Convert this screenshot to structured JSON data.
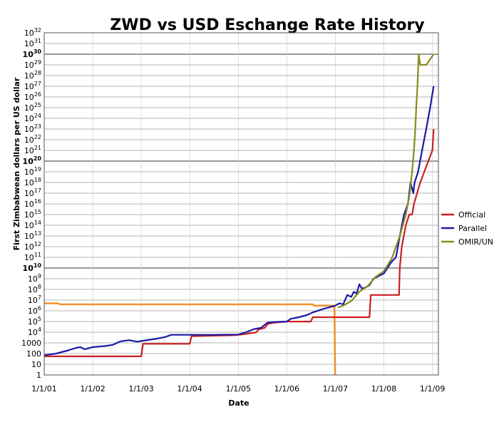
{
  "chart_data": {
    "type": "line",
    "title": "ZWD vs USD Eschange Rate History",
    "xlabel": "Date",
    "ylabel": "First Zimbabwean dollars per US dollar",
    "yscale": "log",
    "ylim": [
      1,
      1e+32
    ],
    "xlim": [
      "2001-01-01",
      "2009-02-15"
    ],
    "x_ticks": [
      "1/1/01",
      "1/1/02",
      "1/1/03",
      "1/1/04",
      "1/1/05",
      "1/1/06",
      "1/1/07",
      "1/1/08",
      "1/1/09"
    ],
    "y_ticks": [
      {
        "value": 1,
        "base": "1",
        "exp": ""
      },
      {
        "value": 10.0,
        "base": "10",
        "exp": ""
      },
      {
        "value": 100.0,
        "base": "100",
        "exp": ""
      },
      {
        "value": 1000.0,
        "base": "1000",
        "exp": ""
      },
      {
        "value": 10000.0,
        "base": "10",
        "exp": "4"
      },
      {
        "value": 100000.0,
        "base": "10",
        "exp": "5"
      },
      {
        "value": 1000000.0,
        "base": "10",
        "exp": "6"
      },
      {
        "value": 10000000.0,
        "base": "10",
        "exp": "7"
      },
      {
        "value": 100000000.0,
        "base": "10",
        "exp": "8"
      },
      {
        "value": 1000000000.0,
        "base": "10",
        "exp": "9"
      },
      {
        "value": 10000000000.0,
        "base": "10",
        "exp": "10",
        "bold": true
      },
      {
        "value": 100000000000.0,
        "base": "10",
        "exp": "11"
      },
      {
        "value": 1000000000000.0,
        "base": "10",
        "exp": "12"
      },
      {
        "value": 10000000000000.0,
        "base": "10",
        "exp": "13"
      },
      {
        "value": 100000000000000.0,
        "base": "10",
        "exp": "14"
      },
      {
        "value": 1000000000000000.0,
        "base": "10",
        "exp": "15"
      },
      {
        "value": 1e+16,
        "base": "10",
        "exp": "16"
      },
      {
        "value": 1e+17,
        "base": "10",
        "exp": "17"
      },
      {
        "value": 1e+18,
        "base": "10",
        "exp": "18"
      },
      {
        "value": 1e+19,
        "base": "10",
        "exp": "19"
      },
      {
        "value": 1e+20,
        "base": "10",
        "exp": "20",
        "bold": true
      },
      {
        "value": 1e+21,
        "base": "10",
        "exp": "21"
      },
      {
        "value": 1e+22,
        "base": "10",
        "exp": "22"
      },
      {
        "value": 1e+23,
        "base": "10",
        "exp": "23"
      },
      {
        "value": 1e+24,
        "base": "10",
        "exp": "24"
      },
      {
        "value": 1e+25,
        "base": "10",
        "exp": "25"
      },
      {
        "value": 1e+26,
        "base": "10",
        "exp": "26"
      },
      {
        "value": 1e+27,
        "base": "10",
        "exp": "27"
      },
      {
        "value": 1e+28,
        "base": "10",
        "exp": "28"
      },
      {
        "value": 1e+29,
        "base": "10",
        "exp": "29"
      },
      {
        "value": 1e+30,
        "base": "10",
        "exp": "30",
        "bold": true
      },
      {
        "value": 1e+31,
        "base": "10",
        "exp": "31"
      },
      {
        "value": 1e+32,
        "base": "10",
        "exp": "32"
      }
    ],
    "grid": true,
    "legend_position": "right",
    "series": [
      {
        "name": "Official",
        "color": "#cc1f1f",
        "points": [
          [
            "2001-01-01",
            55
          ],
          [
            "2003-01-01",
            55
          ],
          [
            "2003-01-15",
            824
          ],
          [
            "2004-01-01",
            824
          ],
          [
            "2004-01-15",
            4196
          ],
          [
            "2004-12-01",
            5200
          ],
          [
            "2005-02-01",
            6200
          ],
          [
            "2005-05-15",
            9500
          ],
          [
            "2005-06-01",
            17600
          ],
          [
            "2005-07-20",
            26000
          ],
          [
            "2005-08-10",
            60000
          ],
          [
            "2005-10-01",
            80000
          ],
          [
            "2006-01-01",
            99000
          ],
          [
            "2006-07-01",
            99000
          ],
          [
            "2006-07-15",
            250000
          ],
          [
            "2007-09-15",
            250000
          ],
          [
            "2007-09-25",
            30000000
          ],
          [
            "2008-03-01",
            30000000
          ],
          [
            "2008-04-25",
            30000000
          ],
          [
            "2008-04-30",
            10000000000.0
          ],
          [
            "2008-05-15",
            1000000000000.0
          ],
          [
            "2008-06-15",
            100000000000000.0
          ],
          [
            "2008-07-10",
            1000000000000000.0
          ],
          [
            "2008-08-01",
            1000000000000000.0
          ],
          [
            "2008-08-15",
            1e+16
          ],
          [
            "2008-10-01",
            1e+18
          ],
          [
            "2008-11-01",
            1e+19
          ],
          [
            "2008-12-01",
            1e+20
          ],
          [
            "2009-01-01",
            1e+21
          ],
          [
            "2009-01-10",
            1e+23
          ]
        ]
      },
      {
        "name": "Parallel",
        "color": "#1a1aa6",
        "points": [
          [
            "2001-01-01",
            70
          ],
          [
            "2001-04-01",
            100
          ],
          [
            "2001-07-01",
            200
          ],
          [
            "2001-09-01",
            350
          ],
          [
            "2001-10-01",
            400
          ],
          [
            "2001-11-01",
            250
          ],
          [
            "2002-01-01",
            400
          ],
          [
            "2002-04-01",
            500
          ],
          [
            "2002-06-01",
            650
          ],
          [
            "2002-08-01",
            1400
          ],
          [
            "2002-10-01",
            1800
          ],
          [
            "2002-12-01",
            1300
          ],
          [
            "2003-02-01",
            1700
          ],
          [
            "2003-05-01",
            2500
          ],
          [
            "2003-07-01",
            3500
          ],
          [
            "2003-08-15",
            5700
          ],
          [
            "2004-01-01",
            5700
          ],
          [
            "2004-07-01",
            5700
          ],
          [
            "2005-01-01",
            6000
          ],
          [
            "2005-03-01",
            10000
          ],
          [
            "2005-05-01",
            20000
          ],
          [
            "2005-06-20",
            25000
          ],
          [
            "2005-07-10",
            40000
          ],
          [
            "2005-08-10",
            80000
          ],
          [
            "2005-10-01",
            90000
          ],
          [
            "2006-01-01",
            100000
          ],
          [
            "2006-02-01",
            180000
          ],
          [
            "2006-04-01",
            250000
          ],
          [
            "2006-06-01",
            400000
          ],
          [
            "2006-07-15",
            700000
          ],
          [
            "2006-10-01",
            1500000
          ],
          [
            "2007-01-01",
            3000000
          ],
          [
            "2007-02-01",
            5000000
          ],
          [
            "2007-03-01",
            4000000
          ],
          [
            "2007-04-01",
            30000000
          ],
          [
            "2007-05-01",
            20000000
          ],
          [
            "2007-05-20",
            60000000
          ],
          [
            "2007-06-10",
            40000000
          ],
          [
            "2007-07-01",
            300000000
          ],
          [
            "2007-07-20",
            120000000
          ],
          [
            "2007-08-15",
            150000000
          ],
          [
            "2007-09-15",
            250000000
          ],
          [
            "2007-10-15",
            1000000000
          ],
          [
            "2007-12-01",
            2000000000
          ],
          [
            "2008-01-01",
            3000000000
          ],
          [
            "2008-02-01",
            12000000000
          ],
          [
            "2008-03-01",
            40000000000
          ],
          [
            "2008-04-01",
            100000000000
          ],
          [
            "2008-05-01",
            10000000000000.0
          ],
          [
            "2008-06-01",
            1000000000000000.0
          ],
          [
            "2008-07-01",
            1e+16
          ],
          [
            "2008-07-20",
            1e+18
          ],
          [
            "2008-08-10",
            1e+17
          ],
          [
            "2008-08-20",
            1e+18
          ],
          [
            "2008-09-15",
            1e+19
          ],
          [
            "2008-10-15",
            1e+21
          ],
          [
            "2008-11-15",
            1e+23
          ],
          [
            "2008-12-15",
            1e+25
          ],
          [
            "2009-01-10",
            1e+27
          ]
        ]
      },
      {
        "name": "OMIR/UN",
        "color": "#8b8b1e",
        "points": [
          [
            "2007-01-20",
            2000000
          ],
          [
            "2007-03-01",
            3000000
          ],
          [
            "2007-05-01",
            8000000
          ],
          [
            "2007-07-01",
            60000000
          ],
          [
            "2007-09-01",
            200000000
          ],
          [
            "2007-11-01",
            1500000000
          ],
          [
            "2008-01-01",
            5000000000
          ],
          [
            "2008-03-01",
            80000000000
          ],
          [
            "2008-05-01",
            10000000000000.0
          ],
          [
            "2008-06-15",
            1000000000000000.0
          ],
          [
            "2008-07-15",
            1e+17
          ],
          [
            "2008-08-01",
            1e+19
          ],
          [
            "2008-08-15",
            1e+21
          ],
          [
            "2008-08-25",
            1e+23
          ],
          [
            "2008-09-01",
            1e+25
          ],
          [
            "2008-09-10",
            1e+27
          ],
          [
            "2008-09-20",
            1e+30
          ],
          [
            "2008-10-01",
            1e+29
          ],
          [
            "2008-11-15",
            1e+29
          ],
          [
            "2009-01-10",
            1e+30
          ]
        ]
      },
      {
        "name": "",
        "color": "#f0902a",
        "points": [
          [
            "2001-01-01",
            5000000
          ],
          [
            "2001-04-15",
            5000000
          ],
          [
            "2001-05-01",
            4000000
          ],
          [
            "2006-07-15",
            4000000
          ],
          [
            "2006-07-25",
            3000000
          ],
          [
            "2006-12-25",
            3000000
          ],
          [
            "2006-12-31",
            1
          ]
        ]
      }
    ]
  }
}
